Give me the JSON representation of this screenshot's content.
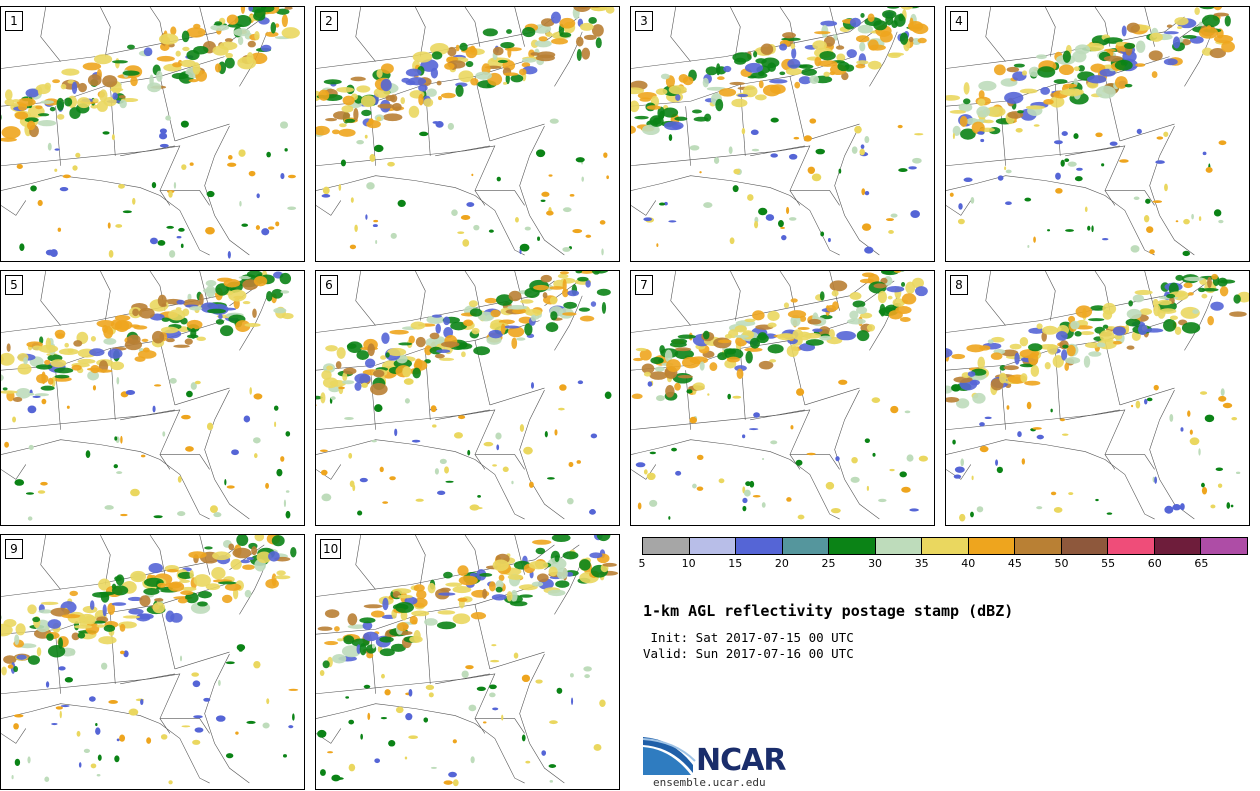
{
  "panels": [
    {
      "num": "1"
    },
    {
      "num": "2"
    },
    {
      "num": "3"
    },
    {
      "num": "4"
    },
    {
      "num": "5"
    },
    {
      "num": "6"
    },
    {
      "num": "7"
    },
    {
      "num": "8"
    },
    {
      "num": "9"
    },
    {
      "num": "10"
    }
  ],
  "colorbar": {
    "colors": [
      "#a6a6a6",
      "#b8bee8",
      "#5565d6",
      "#55969d",
      "#0b8316",
      "#bedcbb",
      "#ead75f",
      "#eea51e",
      "#b98034",
      "#8e583c",
      "#ef4d79",
      "#6e1d3b",
      "#ae4da6"
    ],
    "ticks": [
      "5",
      "10",
      "15",
      "20",
      "25",
      "30",
      "35",
      "40",
      "45",
      "50",
      "55",
      "60",
      "65"
    ]
  },
  "title": "1-km AGL reflectivity postage stamp (dBZ)",
  "init": " Init: Sat 2017-07-15 00 UTC",
  "valid": "Valid: Sun 2017-07-16 00 UTC",
  "logo": {
    "name": "NCAR",
    "url": "ensemble.ucar.edu"
  }
}
